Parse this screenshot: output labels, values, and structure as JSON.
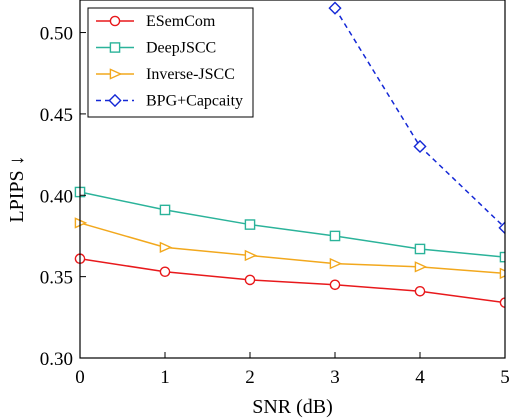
{
  "chart_data": {
    "type": "line",
    "xlabel": "SNR (dB)",
    "ylabel": "LPIPS ↓",
    "xlim": [
      0,
      5
    ],
    "ylim": [
      0.3,
      0.52
    ],
    "xticks": [
      "0",
      "1",
      "2",
      "3",
      "4",
      "5"
    ],
    "yticks": [
      "0.30",
      "0.35",
      "0.40",
      "0.45",
      "0.50"
    ],
    "grid": false,
    "legend_position": "top-left",
    "series": [
      {
        "name": "ESemCom",
        "color": "#e8191c",
        "marker": "circle",
        "dash": "solid",
        "x": [
          0,
          1,
          2,
          3,
          4,
          5
        ],
        "y": [
          0.361,
          0.353,
          0.348,
          0.345,
          0.341,
          0.334
        ]
      },
      {
        "name": "DeepJSCC",
        "color": "#2bb39a",
        "marker": "square",
        "dash": "solid",
        "x": [
          0,
          1,
          2,
          3,
          4,
          5
        ],
        "y": [
          0.402,
          0.391,
          0.382,
          0.375,
          0.367,
          0.362
        ]
      },
      {
        "name": "Inverse-JSCC",
        "color": "#f2a81d",
        "marker": "triangle-right",
        "dash": "solid",
        "x": [
          0,
          1,
          2,
          3,
          4,
          5
        ],
        "y": [
          0.383,
          0.368,
          0.363,
          0.358,
          0.356,
          0.352
        ]
      },
      {
        "name": "BPG+Capcaity",
        "color": "#1428d6",
        "marker": "diamond",
        "dash": "dashed",
        "x": [
          3,
          4,
          5
        ],
        "y": [
          0.515,
          0.43,
          0.38
        ]
      }
    ]
  }
}
